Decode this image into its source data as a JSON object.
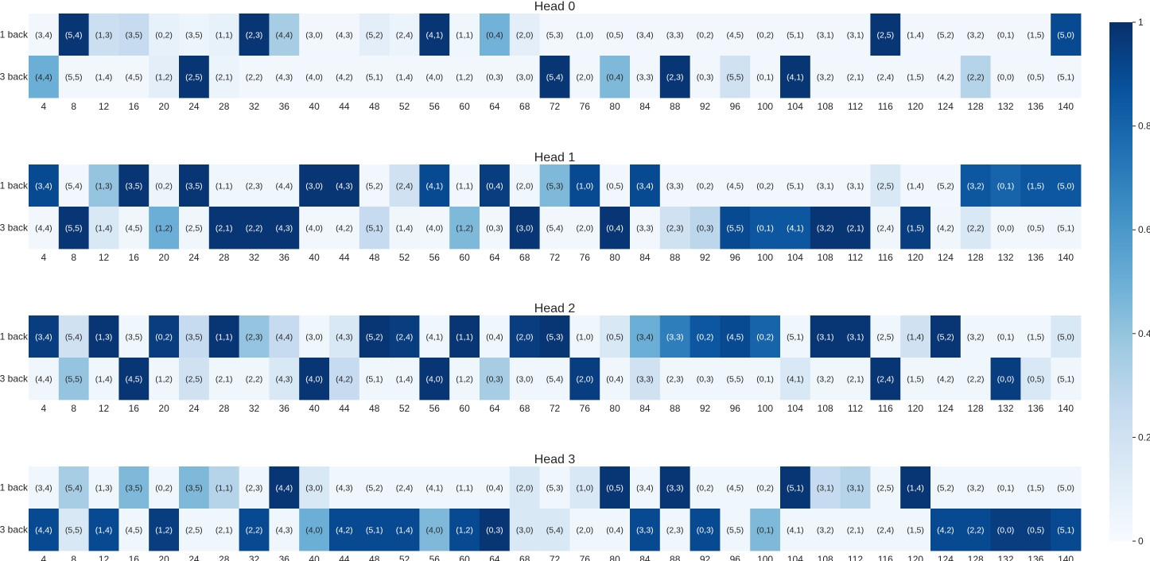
{
  "chart_data": {
    "type": "heatmap",
    "row_labels": [
      "1 back",
      "3 back"
    ],
    "x_ticks": [
      "4",
      "8",
      "12",
      "16",
      "20",
      "24",
      "28",
      "32",
      "36",
      "40",
      "44",
      "48",
      "52",
      "56",
      "60",
      "64",
      "68",
      "72",
      "76",
      "80",
      "84",
      "88",
      "92",
      "96",
      "100",
      "104",
      "108",
      "112",
      "116",
      "120",
      "124",
      "128",
      "132",
      "136",
      "140"
    ],
    "colorbar": {
      "min": 0,
      "max": 1,
      "ticks": [
        "0",
        "0.2",
        "0.4",
        "0.6",
        "0.8",
        "1"
      ]
    },
    "cell_labels": [
      [
        "(3,4)",
        "(5,4)",
        "(1,3)",
        "(3,5)",
        "(0,2)",
        "(3,5)",
        "(1,1)",
        "(2,3)",
        "(4,4)",
        "(3,0)",
        "(4,3)",
        "(5,2)",
        "(2,4)",
        "(4,1)",
        "(1,1)",
        "(0,4)",
        "(2,0)",
        "(5,3)",
        "(1,0)",
        "(0,5)",
        "(3,4)",
        "(3,3)",
        "(0,2)",
        "(4,5)",
        "(0,2)",
        "(5,1)",
        "(3,1)",
        "(3,1)",
        "(2,5)",
        "(1,4)",
        "(5,2)",
        "(3,2)",
        "(0,1)",
        "(1,5)",
        "(5,0)"
      ],
      [
        "(4,4)",
        "(5,5)",
        "(1,4)",
        "(4,5)",
        "(1,2)",
        "(2,5)",
        "(2,1)",
        "(2,2)",
        "(4,3)",
        "(4,0)",
        "(4,2)",
        "(5,1)",
        "(1,4)",
        "(4,0)",
        "(1,2)",
        "(0,3)",
        "(3,0)",
        "(5,4)",
        "(2,0)",
        "(0,4)",
        "(3,3)",
        "(2,3)",
        "(0,3)",
        "(5,5)",
        "(0,1)",
        "(4,1)",
        "(3,2)",
        "(2,1)",
        "(2,4)",
        "(1,5)",
        "(4,2)",
        "(2,2)",
        "(0,0)",
        "(0,5)",
        "(5,1)"
      ]
    ],
    "panels": [
      {
        "title": "Head 0",
        "values": [
          [
            0.03,
            0.98,
            0.22,
            0.25,
            0.08,
            0.05,
            0.08,
            0.98,
            0.35,
            0.03,
            0.03,
            0.1,
            0.06,
            0.98,
            0.04,
            0.48,
            0.1,
            0.03,
            0.03,
            0.03,
            0.03,
            0.03,
            0.03,
            0.03,
            0.03,
            0.03,
            0.03,
            0.03,
            0.98,
            0.03,
            0.03,
            0.03,
            0.03,
            0.03,
            0.9
          ],
          [
            0.5,
            0.03,
            0.03,
            0.03,
            0.1,
            0.98,
            0.06,
            0.03,
            0.03,
            0.03,
            0.03,
            0.03,
            0.03,
            0.03,
            0.03,
            0.03,
            0.03,
            0.98,
            0.03,
            0.45,
            0.03,
            0.98,
            0.03,
            0.2,
            0.03,
            0.98,
            0.03,
            0.03,
            0.03,
            0.03,
            0.03,
            0.3,
            0.03,
            0.03,
            0.03
          ]
        ]
      },
      {
        "title": "Head 1",
        "values": [
          [
            0.9,
            0.03,
            0.4,
            0.98,
            0.05,
            0.98,
            0.04,
            0.04,
            0.04,
            0.98,
            0.98,
            0.03,
            0.2,
            0.9,
            0.03,
            0.95,
            0.04,
            0.45,
            0.9,
            0.03,
            0.9,
            0.03,
            0.03,
            0.03,
            0.03,
            0.03,
            0.03,
            0.03,
            0.15,
            0.03,
            0.03,
            0.85,
            0.8,
            0.85,
            0.85
          ],
          [
            0.03,
            0.98,
            0.15,
            0.04,
            0.5,
            0.04,
            0.98,
            0.98,
            0.98,
            0.03,
            0.03,
            0.25,
            0.04,
            0.03,
            0.45,
            0.03,
            0.98,
            0.03,
            0.03,
            0.98,
            0.03,
            0.2,
            0.28,
            0.9,
            0.85,
            0.85,
            0.98,
            0.98,
            0.04,
            0.95,
            0.04,
            0.15,
            0.03,
            0.03,
            0.04
          ]
        ]
      },
      {
        "title": "Head 2",
        "values": [
          [
            0.95,
            0.2,
            0.98,
            0.04,
            0.95,
            0.25,
            0.98,
            0.4,
            0.25,
            0.04,
            0.15,
            0.98,
            0.95,
            0.04,
            0.98,
            0.04,
            0.95,
            0.98,
            0.04,
            0.15,
            0.5,
            0.7,
            0.85,
            0.9,
            0.8,
            0.04,
            0.98,
            0.98,
            0.04,
            0.2,
            0.98,
            0.04,
            0.04,
            0.04,
            0.15
          ],
          [
            0.04,
            0.4,
            0.04,
            0.98,
            0.04,
            0.2,
            0.04,
            0.04,
            0.15,
            0.98,
            0.25,
            0.04,
            0.04,
            0.98,
            0.04,
            0.35,
            0.04,
            0.04,
            0.95,
            0.04,
            0.2,
            0.04,
            0.04,
            0.04,
            0.04,
            0.15,
            0.04,
            0.04,
            0.98,
            0.04,
            0.04,
            0.04,
            0.95,
            0.15,
            0.04
          ]
        ]
      },
      {
        "title": "Head 3",
        "values": [
          [
            0.04,
            0.35,
            0.04,
            0.45,
            0.04,
            0.45,
            0.3,
            0.04,
            0.98,
            0.15,
            0.04,
            0.04,
            0.04,
            0.04,
            0.04,
            0.04,
            0.15,
            0.04,
            0.15,
            0.98,
            0.04,
            0.98,
            0.04,
            0.04,
            0.04,
            0.98,
            0.25,
            0.3,
            0.04,
            0.98,
            0.04,
            0.04,
            0.04,
            0.04,
            0.04
          ],
          [
            0.9,
            0.15,
            0.9,
            0.04,
            0.95,
            0.04,
            0.04,
            0.9,
            0.04,
            0.5,
            0.9,
            0.9,
            0.9,
            0.45,
            0.9,
            0.98,
            0.15,
            0.15,
            0.04,
            0.04,
            0.9,
            0.04,
            0.9,
            0.04,
            0.45,
            0.04,
            0.04,
            0.04,
            0.04,
            0.04,
            0.9,
            0.9,
            0.95,
            0.95,
            0.9
          ]
        ]
      }
    ]
  }
}
